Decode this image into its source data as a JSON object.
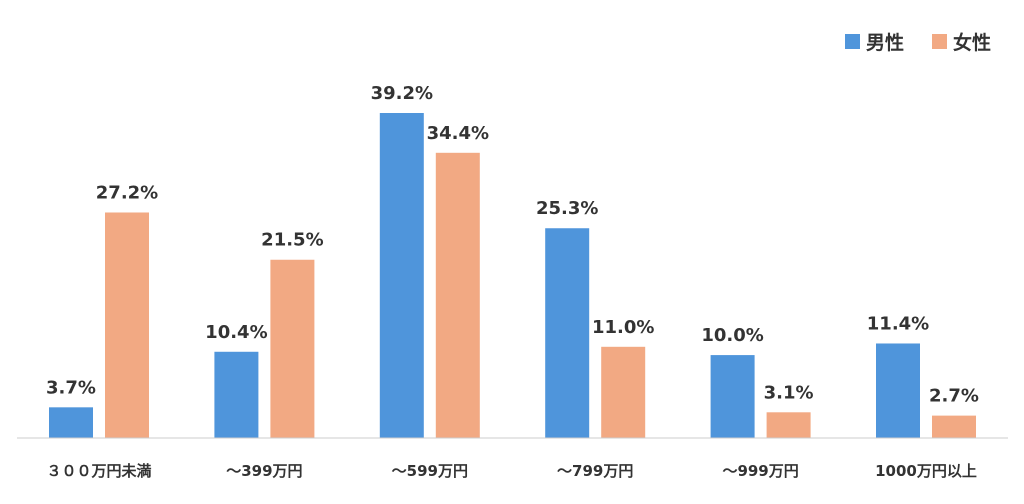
{
  "chart_data": {
    "type": "bar",
    "categories": [
      "３００万円未満",
      "～399万円",
      "～599万円",
      "～799万円",
      "～999万円",
      "1000万円以上"
    ],
    "series": [
      {
        "name": "男性",
        "color": "#4f95db",
        "values": [
          3.7,
          10.4,
          39.2,
          25.3,
          10.0,
          11.4
        ],
        "labels": [
          "3.7%",
          "10.4%",
          "39.2%",
          "25.3%",
          "10.0%",
          "11.4%"
        ]
      },
      {
        "name": "女性",
        "color": "#f2a983",
        "values": [
          27.2,
          21.5,
          34.4,
          11.0,
          3.1,
          2.7
        ],
        "labels": [
          "27.2%",
          "21.5%",
          "34.4%",
          "11.0%",
          "3.1%",
          "2.7%"
        ]
      }
    ],
    "ylim": [
      0,
      39.2
    ],
    "grid": false,
    "legend_position": "top-right",
    "axis_color": "#cccccc",
    "label_color": "#333333"
  }
}
